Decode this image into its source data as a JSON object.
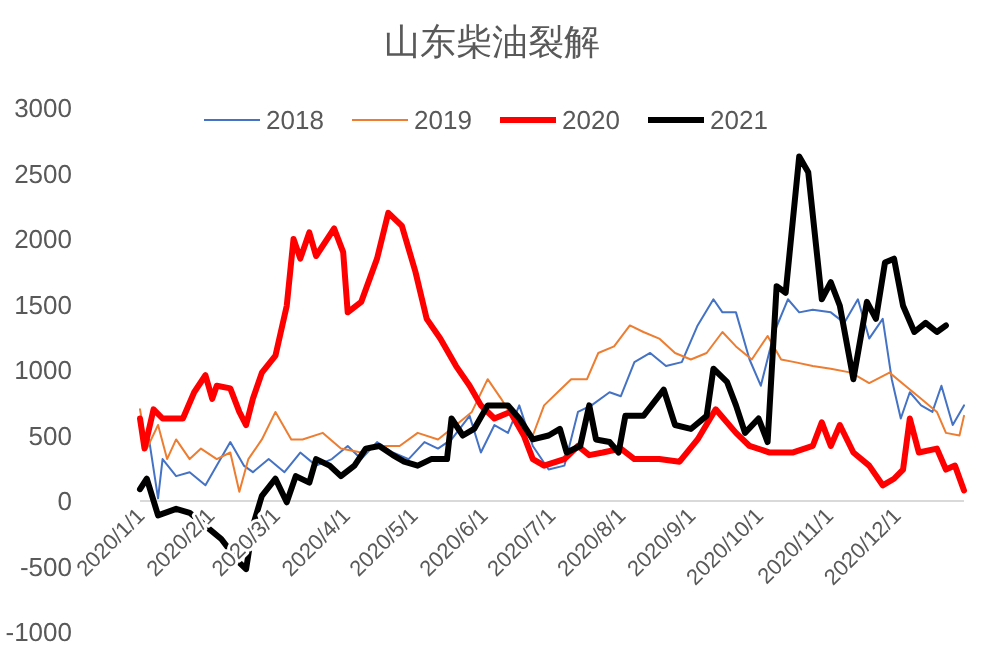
{
  "chart_data": {
    "type": "line",
    "title": "山东柴油裂解",
    "xlim": [
      "2020-01-01",
      "2020-12-31"
    ],
    "xticks": [
      {
        "value": "2020-01-01",
        "label": "2020/1/1"
      },
      {
        "value": "2020-02-01",
        "label": "2020/2/1"
      },
      {
        "value": "2020-03-01",
        "label": "2020/3/1"
      },
      {
        "value": "2020-04-01",
        "label": "2020/4/1"
      },
      {
        "value": "2020-05-01",
        "label": "2020/5/1"
      },
      {
        "value": "2020-06-01",
        "label": "2020/6/1"
      },
      {
        "value": "2020-07-01",
        "label": "2020/7/1"
      },
      {
        "value": "2020-08-01",
        "label": "2020/8/1"
      },
      {
        "value": "2020-09-01",
        "label": "2020/9/1"
      },
      {
        "value": "2020-10-01",
        "label": "2020/10/1"
      },
      {
        "value": "2020-11-01",
        "label": "2020/11/1"
      },
      {
        "value": "2020-12-01",
        "label": "2020/12/1"
      }
    ],
    "ylim": [
      -1000,
      3000
    ],
    "yticks": [
      -1000,
      -500,
      0,
      500,
      1000,
      1500,
      2000,
      2500,
      3000
    ],
    "grid": false,
    "legend": "top",
    "marker": "none",
    "line_style": "solid",
    "series": [
      {
        "name": "2018",
        "color": "#4472c4",
        "x": [
          "2020-01-05",
          "2020-01-09",
          "2020-01-11",
          "2020-01-17",
          "2020-01-23",
          "2020-01-30",
          "2020-02-04",
          "2020-02-10",
          "2020-02-16",
          "2020-02-20",
          "2020-02-27",
          "2020-03-05",
          "2020-03-12",
          "2020-03-19",
          "2020-03-26",
          "2020-04-02",
          "2020-04-08",
          "2020-04-15",
          "2020-04-22",
          "2020-04-29",
          "2020-05-06",
          "2020-05-12",
          "2020-05-18",
          "2020-05-26",
          "2020-05-31",
          "2020-06-06",
          "2020-06-12",
          "2020-06-17",
          "2020-06-23",
          "2020-06-30",
          "2020-07-07",
          "2020-07-13",
          "2020-07-19",
          "2020-07-27",
          "2020-08-01",
          "2020-08-07",
          "2020-08-14",
          "2020-08-21",
          "2020-08-28",
          "2020-09-04",
          "2020-09-11",
          "2020-09-15",
          "2020-09-21",
          "2020-09-27",
          "2020-10-02",
          "2020-10-08",
          "2020-10-14",
          "2020-10-19",
          "2020-10-25",
          "2020-11-02",
          "2020-11-08",
          "2020-11-14",
          "2020-11-19",
          "2020-11-25",
          "2020-11-29",
          "2020-12-03",
          "2020-12-07",
          "2020-12-12",
          "2020-12-17",
          "2020-12-21",
          "2020-12-26",
          "2020-12-31"
        ],
        "values": [
          470,
          20,
          320,
          190,
          220,
          120,
          270,
          450,
          270,
          220,
          320,
          220,
          370,
          270,
          320,
          420,
          320,
          450,
          370,
          320,
          450,
          400,
          470,
          650,
          370,
          580,
          520,
          730,
          420,
          240,
          270,
          680,
          730,
          830,
          800,
          1060,
          1130,
          1030,
          1060,
          1340,
          1540,
          1440,
          1440,
          1080,
          880,
          1290,
          1540,
          1440,
          1460,
          1440,
          1360,
          1540,
          1240,
          1390,
          930,
          630,
          830,
          730,
          680,
          880,
          580,
          730
        ]
      },
      {
        "name": "2019",
        "color": "#ed7d31",
        "x": [
          "2020-01-01",
          "2020-01-04",
          "2020-01-09",
          "2020-01-13",
          "2020-01-17",
          "2020-01-23",
          "2020-01-28",
          "2020-02-04",
          "2020-02-10",
          "2020-02-14",
          "2020-02-18",
          "2020-02-24",
          "2020-03-01",
          "2020-03-08",
          "2020-03-13",
          "2020-03-22",
          "2020-03-30",
          "2020-04-08",
          "2020-04-16",
          "2020-04-25",
          "2020-05-03",
          "2020-05-12",
          "2020-05-20",
          "2020-05-27",
          "2020-06-03",
          "2020-06-09",
          "2020-06-16",
          "2020-06-23",
          "2020-06-28",
          "2020-07-04",
          "2020-07-10",
          "2020-07-17",
          "2020-07-22",
          "2020-07-29",
          "2020-08-05",
          "2020-08-11",
          "2020-08-18",
          "2020-08-25",
          "2020-09-01",
          "2020-09-08",
          "2020-09-15",
          "2020-09-21",
          "2020-09-28",
          "2020-10-05",
          "2020-10-11",
          "2020-10-17",
          "2020-10-25",
          "2020-11-02",
          "2020-11-11",
          "2020-11-19",
          "2020-11-28",
          "2020-12-05",
          "2020-12-12",
          "2020-12-19",
          "2020-12-23",
          "2020-12-29",
          "2020-12-31"
        ],
        "values": [
          700,
          400,
          580,
          320,
          470,
          320,
          400,
          320,
          370,
          70,
          320,
          470,
          680,
          470,
          470,
          520,
          400,
          370,
          420,
          420,
          520,
          470,
          580,
          680,
          930,
          780,
          580,
          500,
          730,
          830,
          930,
          930,
          1130,
          1180,
          1340,
          1290,
          1240,
          1130,
          1080,
          1130,
          1290,
          1180,
          1080,
          1260,
          1080,
          1060,
          1030,
          1010,
          980,
          900,
          980,
          880,
          780,
          680,
          520,
          500,
          650
        ]
      },
      {
        "name": "2020",
        "color": "#ff0000",
        "x": [
          "2020-01-01",
          "2020-01-03",
          "2020-01-07",
          "2020-01-11",
          "2020-01-20",
          "2020-01-25",
          "2020-01-30",
          "2020-02-02",
          "2020-02-04",
          "2020-02-10",
          "2020-02-14",
          "2020-02-17",
          "2020-02-20",
          "2020-02-24",
          "2020-03-01",
          "2020-03-06",
          "2020-03-09",
          "2020-03-12",
          "2020-03-16",
          "2020-03-19",
          "2020-03-27",
          "2020-03-31",
          "2020-04-02",
          "2020-04-08",
          "2020-04-15",
          "2020-04-20",
          "2020-04-26",
          "2020-05-02",
          "2020-05-07",
          "2020-05-13",
          "2020-05-20",
          "2020-05-26",
          "2020-05-31",
          "2020-06-06",
          "2020-06-13",
          "2020-06-19",
          "2020-06-23",
          "2020-06-28",
          "2020-07-07",
          "2020-07-13",
          "2020-07-18",
          "2020-07-24",
          "2020-08-01",
          "2020-08-07",
          "2020-08-18",
          "2020-08-27",
          "2020-09-04",
          "2020-09-12",
          "2020-09-21",
          "2020-09-27",
          "2020-10-06",
          "2020-10-16",
          "2020-10-25",
          "2020-10-29",
          "2020-11-02",
          "2020-11-06",
          "2020-11-12",
          "2020-11-19",
          "2020-11-25",
          "2020-11-30",
          "2020-12-04",
          "2020-12-07",
          "2020-12-11",
          "2020-12-19",
          "2020-12-23",
          "2020-12-27",
          "2020-12-31"
        ],
        "values": [
          630,
          400,
          700,
          630,
          630,
          830,
          960,
          780,
          880,
          860,
          680,
          580,
          780,
          980,
          1110,
          1490,
          2000,
          1850,
          2050,
          1870,
          2080,
          1900,
          1440,
          1520,
          1850,
          2200,
          2100,
          1750,
          1390,
          1240,
          1030,
          880,
          730,
          630,
          680,
          500,
          320,
          270,
          320,
          420,
          350,
          370,
          400,
          320,
          320,
          300,
          470,
          700,
          520,
          420,
          370,
          370,
          420,
          600,
          420,
          580,
          370,
          270,
          120,
          170,
          240,
          630,
          370,
          400,
          240,
          270,
          80
        ]
      },
      {
        "name": "2021",
        "color": "#000000",
        "x": [
          "2020-01-01",
          "2020-01-04",
          "2020-01-09",
          "2020-01-17",
          "2020-01-23",
          "2020-01-30",
          "2020-02-06",
          "2020-02-14",
          "2020-02-17",
          "2020-02-20",
          "2020-02-24",
          "2020-03-01",
          "2020-03-06",
          "2020-03-10",
          "2020-03-16",
          "2020-03-19",
          "2020-03-25",
          "2020-03-30",
          "2020-04-05",
          "2020-04-10",
          "2020-04-16",
          "2020-04-22",
          "2020-04-27",
          "2020-05-03",
          "2020-05-09",
          "2020-05-16",
          "2020-05-18",
          "2020-05-23",
          "2020-05-28",
          "2020-06-03",
          "2020-06-12",
          "2020-06-17",
          "2020-06-23",
          "2020-06-30",
          "2020-07-05",
          "2020-07-08",
          "2020-07-14",
          "2020-07-18",
          "2020-07-21",
          "2020-07-27",
          "2020-07-31",
          "2020-08-03",
          "2020-08-11",
          "2020-08-20",
          "2020-08-25",
          "2020-09-01",
          "2020-09-08",
          "2020-09-11",
          "2020-09-17",
          "2020-09-21",
          "2020-09-25",
          "2020-10-01",
          "2020-10-05",
          "2020-10-09",
          "2020-10-13",
          "2020-10-19",
          "2020-10-23",
          "2020-10-29",
          "2020-11-02",
          "2020-11-06",
          "2020-11-12",
          "2020-11-18",
          "2020-11-22",
          "2020-11-26",
          "2020-11-30",
          "2020-12-04",
          "2020-12-09",
          "2020-12-14",
          "2020-12-19",
          "2020-12-23"
        ],
        "values": [
          90,
          170,
          -110,
          -60,
          -90,
          -190,
          -290,
          -470,
          -520,
          -190,
          40,
          170,
          -10,
          190,
          140,
          320,
          270,
          190,
          270,
          400,
          420,
          350,
          300,
          270,
          320,
          320,
          630,
          500,
          550,
          730,
          730,
          630,
          470,
          500,
          550,
          370,
          420,
          730,
          470,
          450,
          370,
          650,
          650,
          850,
          580,
          550,
          650,
          1010,
          910,
          730,
          520,
          630,
          450,
          1640,
          1590,
          2630,
          2510,
          1540,
          1670,
          1490,
          930,
          1520,
          1390,
          1820,
          1850,
          1490,
          1290,
          1360,
          1290,
          1340
        ]
      }
    ]
  }
}
